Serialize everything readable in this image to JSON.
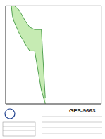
{
  "chart_data": {
    "type": "area",
    "x": [
      0.9,
      1,
      1.2,
      2,
      4,
      6,
      10,
      20,
      30
    ],
    "series": [
      {
        "color": "#2e8b2e",
        "values": [
          1000,
          300,
          150,
          40,
          10,
          5,
          5,
          0.05,
          0.01
        ]
      },
      {
        "color": "#2e8b2e",
        "values": [
          1000,
          1000,
          1000,
          600,
          150,
          80,
          60,
          60,
          0.02
        ]
      }
    ],
    "color": "#b8e6a0",
    "log": true,
    "xlim": [
      0.5,
      10000
    ],
    "xticks": [
      0.5,
      1,
      10,
      100,
      1000,
      10000
    ],
    "ylim": [
      0.01,
      1000
    ],
    "yticks": [
      0.01,
      0.1,
      1,
      10,
      100,
      1000
    ],
    "grid": true,
    "tick_labels": false,
    "footer": {
      "code": "GES-9663"
    }
  }
}
